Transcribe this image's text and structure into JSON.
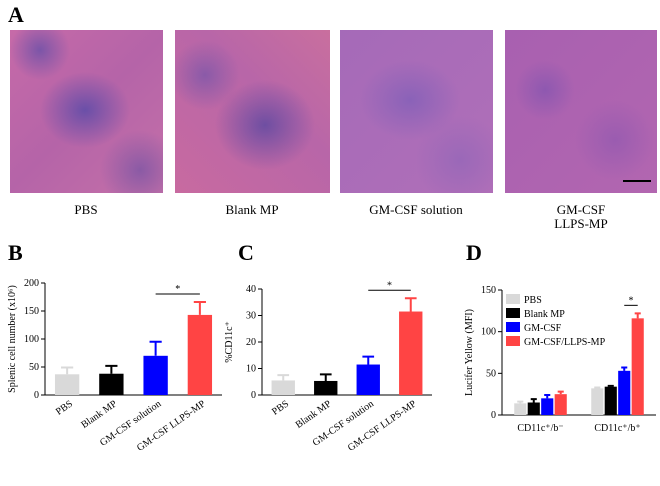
{
  "figure": {
    "panel_labels": [
      "A",
      "B",
      "C",
      "D"
    ],
    "image_captions": [
      "PBS",
      "Blank MP",
      "GM-CSF solution",
      "GM-CSF\nLLPS-MP"
    ]
  },
  "chart_data": [
    {
      "type": "bar",
      "ylabel": "Splenic cell number (x10⁶)",
      "categories": [
        "PBS",
        "Blank MP",
        "GM-CSF solution",
        "GM-CSF LLPS-MP"
      ],
      "values": [
        37,
        38,
        70,
        143
      ],
      "errors": [
        12,
        14,
        25,
        23
      ],
      "colors": [
        "#d9d9d9",
        "#000000",
        "#0000ff",
        "#ff4444"
      ],
      "ylim": [
        0,
        200
      ],
      "yticks": [
        0,
        50,
        100,
        150,
        200
      ],
      "annotation": "*"
    },
    {
      "type": "bar",
      "ylabel": "%CD11c⁺",
      "categories": [
        "PBS",
        "Blank MP",
        "GM-CSF solution",
        "GM-CSF LLPS-MP"
      ],
      "values": [
        5.5,
        5.3,
        11.5,
        31.5
      ],
      "errors": [
        2,
        2.5,
        3,
        5
      ],
      "colors": [
        "#d9d9d9",
        "#000000",
        "#0000ff",
        "#ff4444"
      ],
      "ylim": [
        0,
        40
      ],
      "yticks": [
        0,
        10,
        20,
        30,
        40
      ],
      "annotation": "*"
    },
    {
      "type": "grouped_bar",
      "ylabel": "Lucifer Yellow (MFI)",
      "categories": [
        "CD11c⁺/b⁻",
        "CD11c⁺/b⁺"
      ],
      "series": [
        {
          "name": "PBS",
          "color": "#d9d9d9",
          "values": [
            14,
            32
          ],
          "errors": [
            2,
            1
          ]
        },
        {
          "name": "Blank MP",
          "color": "#000000",
          "values": [
            15,
            34
          ],
          "errors": [
            4,
            1
          ]
        },
        {
          "name": "GM-CSF",
          "color": "#0000ff",
          "values": [
            20,
            53
          ],
          "errors": [
            4,
            4
          ]
        },
        {
          "name": "GM-CSF/LLPS-MP",
          "color": "#ff4444",
          "values": [
            25,
            116
          ],
          "errors": [
            3,
            6
          ]
        }
      ],
      "ylim": [
        0,
        150
      ],
      "yticks": [
        0,
        50,
        100,
        150
      ],
      "legend": "upper left",
      "annotation": "*"
    }
  ]
}
